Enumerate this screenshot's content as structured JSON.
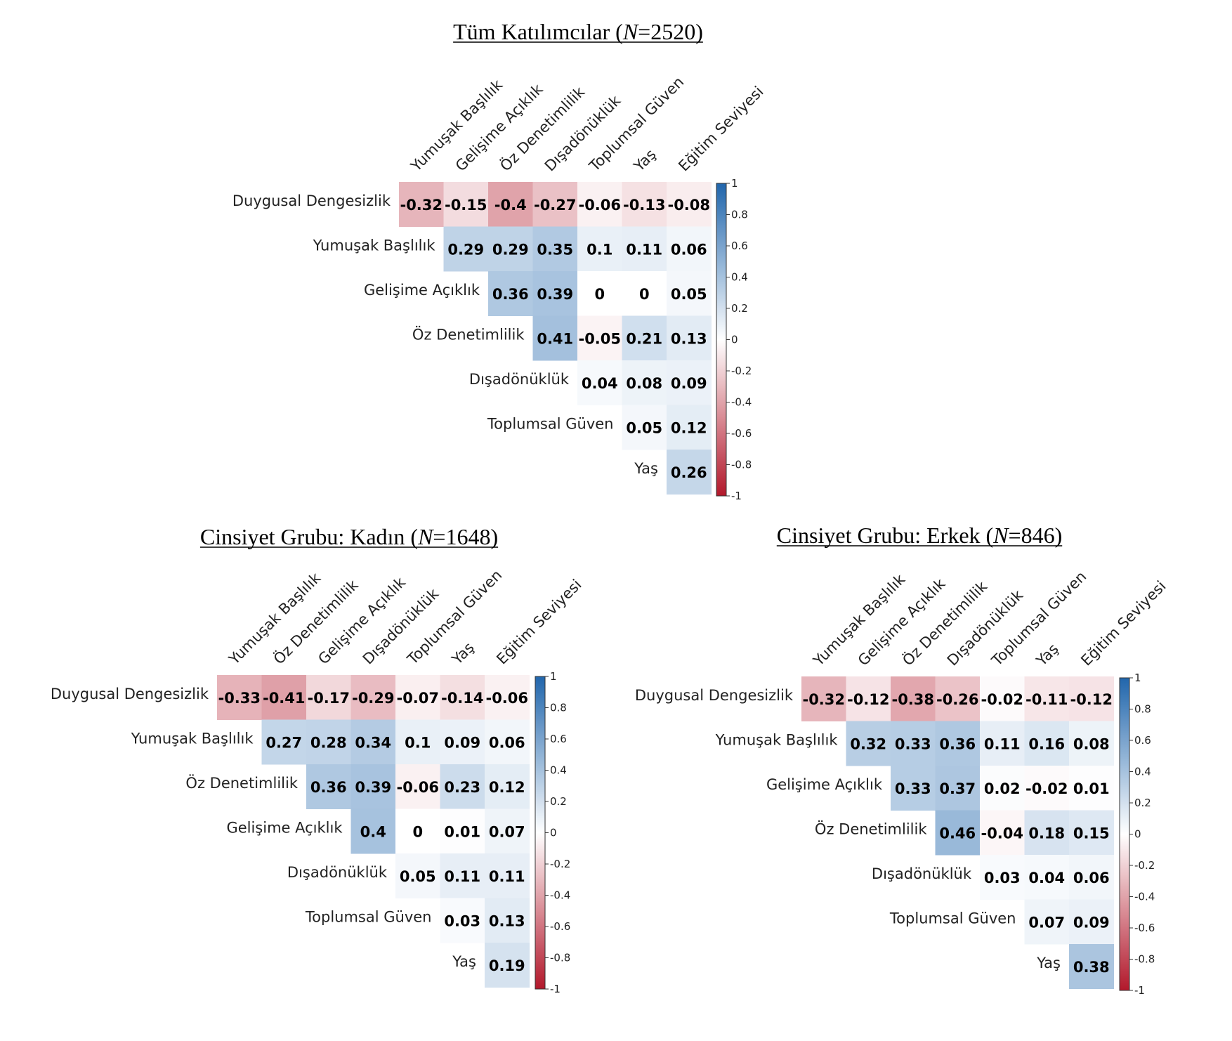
{
  "palette": {
    "negative": "#B2182B",
    "neutral": "#FFFFFF",
    "positive": "#2166AC"
  },
  "chart_data": [
    {
      "type": "heatmap",
      "title": "Tüm Katılımcılar (N=2520)",
      "title_parts": [
        "Tüm Katılımcılar (",
        "N",
        "=2520)"
      ],
      "rows": [
        "Duygusal Dengesizlik",
        "Yumuşak Başlılık",
        "Gelişime Açıklık",
        "Öz Denetimlilik",
        "Dışadönüklük",
        "Toplumsal Güven",
        "Yaş"
      ],
      "cols": [
        "Yumuşak Başlılık",
        "Gelişime Açıklık",
        "Öz Denetimlilik",
        "Dışadönüklük",
        "Toplumsal Güven",
        "Yaş",
        "Eğitim Seviyesi"
      ],
      "values": [
        [
          "-0.32",
          "-0.15",
          "-0.4",
          "-0.27",
          "-0.06",
          "-0.13",
          "-0.08"
        ],
        [
          null,
          "0.29",
          "0.29",
          "0.35",
          "0.1",
          "0.11",
          "0.06"
        ],
        [
          null,
          null,
          "0.36",
          "0.39",
          "0",
          "0",
          "0.05"
        ],
        [
          null,
          null,
          null,
          "0.41",
          "-0.05",
          "0.21",
          "0.13"
        ],
        [
          null,
          null,
          null,
          null,
          "0.04",
          "0.08",
          "0.09"
        ],
        [
          null,
          null,
          null,
          null,
          null,
          "0.05",
          "0.12"
        ],
        [
          null,
          null,
          null,
          null,
          null,
          null,
          "0.26"
        ]
      ],
      "colorbar": {
        "range": [
          -1,
          1
        ],
        "ticks": [
          "1",
          "0.8",
          "0.6",
          "0.4",
          "0.2",
          "0",
          "-0.2",
          "-0.4",
          "-0.6",
          "-0.8",
          "-1"
        ]
      }
    },
    {
      "type": "heatmap",
      "title": "Cinsiyet Grubu: Kadın (N=1648)",
      "title_parts": [
        "Cinsiyet Grubu: Kadın (",
        "N",
        "=1648)"
      ],
      "rows": [
        "Duygusal Dengesizlik",
        "Yumuşak Başlılık",
        "Öz Denetimlilik",
        "Gelişime Açıklık",
        "Dışadönüklük",
        "Toplumsal Güven",
        "Yaş"
      ],
      "cols": [
        "Yumuşak Başlılık",
        "Öz Denetimlilik",
        "Gelişime Açıklık",
        "Dışadönüklük",
        "Toplumsal Güven",
        "Yaş",
        "Eğitim Seviyesi"
      ],
      "values": [
        [
          "-0.33",
          "-0.41",
          "-0.17",
          "-0.29",
          "-0.07",
          "-0.14",
          "-0.06"
        ],
        [
          null,
          "0.27",
          "0.28",
          "0.34",
          "0.1",
          "0.09",
          "0.06"
        ],
        [
          null,
          null,
          "0.36",
          "0.39",
          "-0.06",
          "0.23",
          "0.12"
        ],
        [
          null,
          null,
          null,
          "0.4",
          "0",
          "0.01",
          "0.07"
        ],
        [
          null,
          null,
          null,
          null,
          "0.05",
          "0.11",
          "0.11"
        ],
        [
          null,
          null,
          null,
          null,
          null,
          "0.03",
          "0.13"
        ],
        [
          null,
          null,
          null,
          null,
          null,
          null,
          "0.19"
        ]
      ],
      "colorbar": {
        "range": [
          -1,
          1
        ],
        "ticks": [
          "1",
          "0.8",
          "0.6",
          "0.4",
          "0.2",
          "0",
          "-0.2",
          "-0.4",
          "-0.6",
          "-0.8",
          "-1"
        ]
      }
    },
    {
      "type": "heatmap",
      "title": "Cinsiyet Grubu: Erkek (N=846)",
      "title_parts": [
        "Cinsiyet Grubu: Erkek (",
        "N",
        "=846)"
      ],
      "rows": [
        "Duygusal Dengesizlik",
        "Yumuşak Başlılık",
        "Gelişime Açıklık",
        "Öz Denetimlilik",
        "Dışadönüklük",
        "Toplumsal Güven",
        "Yaş"
      ],
      "cols": [
        "Yumuşak Başlılık",
        "Gelişime Açıklık",
        "Öz Denetimlilik",
        "Dışadönüklük",
        "Toplumsal Güven",
        "Yaş",
        "Eğitim Seviyesi"
      ],
      "values": [
        [
          "-0.32",
          "-0.12",
          "-0.38",
          "-0.26",
          "-0.02",
          "-0.11",
          "-0.12"
        ],
        [
          null,
          "0.32",
          "0.33",
          "0.36",
          "0.11",
          "0.16",
          "0.08"
        ],
        [
          null,
          null,
          "0.33",
          "0.37",
          "0.02",
          "-0.02",
          "0.01"
        ],
        [
          null,
          null,
          null,
          "0.46",
          "-0.04",
          "0.18",
          "0.15"
        ],
        [
          null,
          null,
          null,
          null,
          "0.03",
          "0.04",
          "0.06"
        ],
        [
          null,
          null,
          null,
          null,
          null,
          "0.07",
          "0.09"
        ],
        [
          null,
          null,
          null,
          null,
          null,
          null,
          "0.38"
        ]
      ],
      "colorbar": {
        "range": [
          -1,
          1
        ],
        "ticks": [
          "1",
          "0.8",
          "0.6",
          "0.4",
          "0.2",
          "0",
          "-0.2",
          "-0.4",
          "-0.6",
          "-0.8",
          "-1"
        ]
      }
    }
  ]
}
